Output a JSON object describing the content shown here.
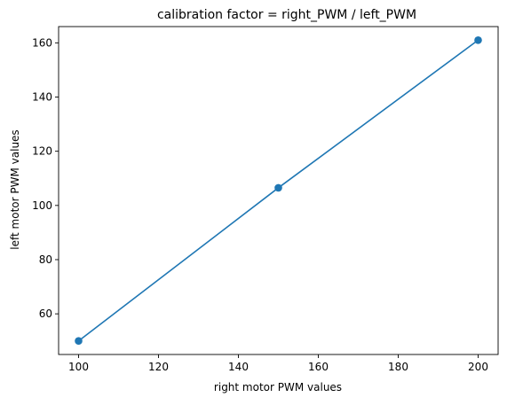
{
  "chart_data": {
    "type": "line",
    "title": "calibration factor = right_PWM / left_PWM",
    "xlabel": "right motor PWM values",
    "ylabel": "left motor PWM values",
    "xlim": [
      95,
      205
    ],
    "ylim": [
      45,
      166
    ],
    "x_ticks": [
      100,
      120,
      140,
      160,
      180,
      200
    ],
    "y_ticks": [
      60,
      80,
      100,
      120,
      140,
      160
    ],
    "grid": false,
    "series": [
      {
        "x": [
          100,
          150,
          200
        ],
        "y": [
          50,
          106.5,
          161
        ],
        "color": "#1f77b4",
        "marker": "circle"
      }
    ]
  }
}
